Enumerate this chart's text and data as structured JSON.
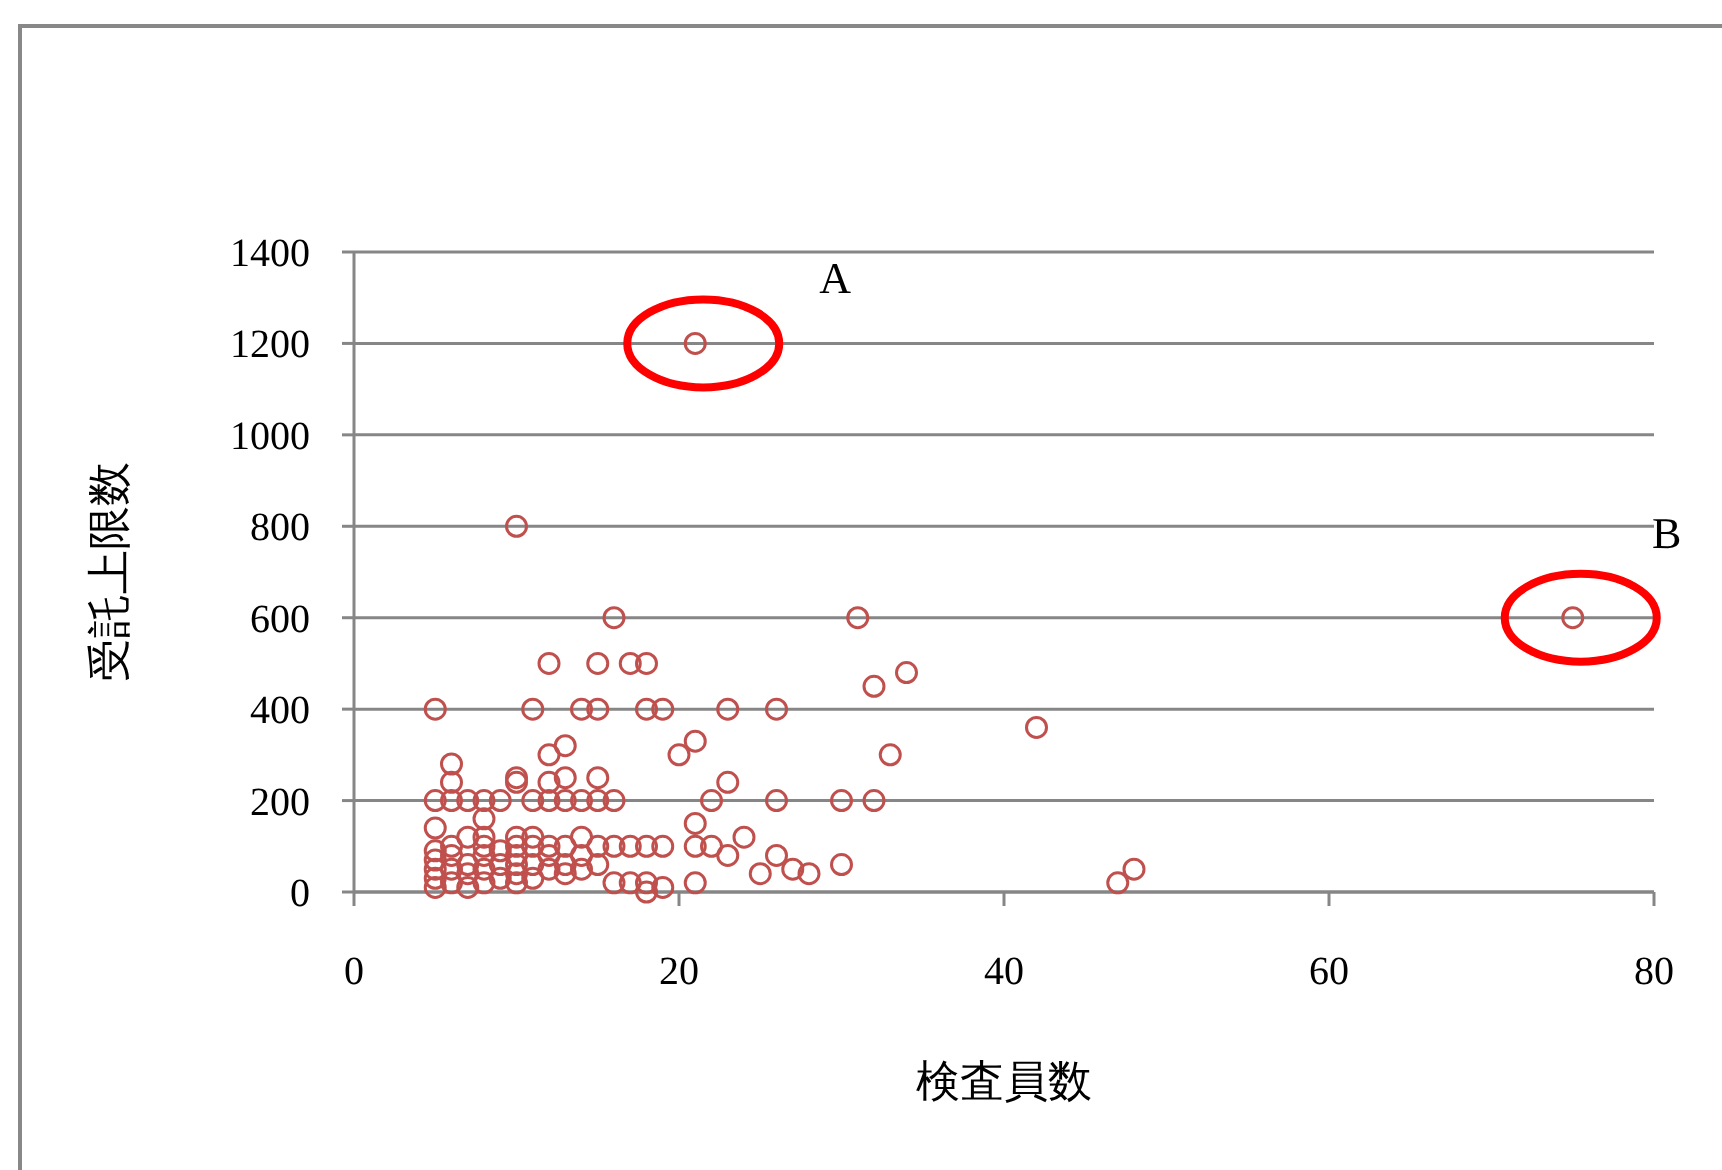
{
  "chart_data": {
    "type": "scatter",
    "xlabel": "検査員数",
    "ylabel": "受託上限数",
    "xlim": [
      0,
      80
    ],
    "xticks": [
      0,
      20,
      40,
      60,
      80
    ],
    "ylim": [
      0,
      1400
    ],
    "yticks": [
      0,
      200,
      400,
      600,
      800,
      1000,
      1200,
      1400
    ],
    "grid": "y",
    "marker": "circle",
    "annotations": [
      {
        "text": "A",
        "x": 21,
        "y": 1200
      },
      {
        "text": "B",
        "x": 75,
        "y": 600
      }
    ],
    "series": [
      {
        "color": "#c0504d",
        "x": [
          21,
          75,
          10,
          16,
          31,
          5,
          11,
          14,
          15,
          18,
          19,
          23,
          26,
          12,
          15,
          17,
          18,
          34,
          32,
          21,
          20,
          33,
          42,
          12,
          13,
          6,
          10,
          10,
          12,
          13,
          15,
          23,
          16,
          5,
          6,
          7,
          8,
          9,
          11,
          12,
          13,
          14,
          15,
          22,
          26,
          30,
          32,
          6,
          5,
          8,
          21,
          24,
          14,
          11,
          17,
          18,
          16,
          21,
          22,
          23,
          26,
          27,
          28,
          25,
          30,
          47,
          48,
          21,
          17,
          18,
          19,
          16,
          18,
          5,
          5,
          5,
          5,
          5,
          6,
          6,
          6,
          6,
          7,
          7,
          7,
          7,
          8,
          8,
          8,
          8,
          8,
          9,
          9,
          9,
          10,
          10,
          10,
          10,
          10,
          10,
          11,
          11,
          11,
          12,
          12,
          12,
          13,
          13,
          13,
          14,
          14,
          15,
          15,
          19
        ],
        "values": [
          1200,
          600,
          800,
          600,
          600,
          400,
          400,
          400,
          400,
          400,
          400,
          400,
          400,
          500,
          500,
          500,
          500,
          480,
          450,
          330,
          300,
          300,
          360,
          300,
          320,
          280,
          250,
          240,
          240,
          250,
          250,
          240,
          200,
          200,
          200,
          200,
          200,
          200,
          200,
          200,
          200,
          200,
          200,
          200,
          200,
          200,
          200,
          240,
          140,
          160,
          150,
          120,
          120,
          120,
          100,
          100,
          100,
          100,
          100,
          80,
          80,
          50,
          40,
          40,
          60,
          20,
          50,
          20,
          20,
          20,
          10,
          20,
          0,
          10,
          30,
          50,
          70,
          90,
          20,
          50,
          80,
          100,
          10,
          40,
          60,
          120,
          20,
          50,
          80,
          100,
          120,
          30,
          60,
          90,
          20,
          40,
          60,
          80,
          100,
          120,
          30,
          60,
          100,
          50,
          80,
          100,
          40,
          60,
          100,
          50,
          80,
          60,
          100,
          100
        ]
      }
    ]
  }
}
